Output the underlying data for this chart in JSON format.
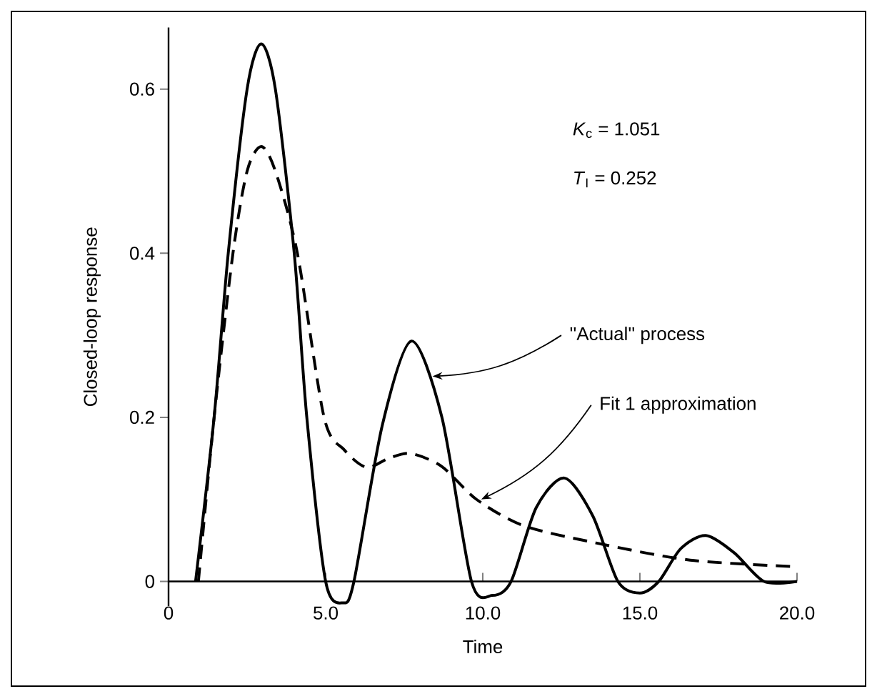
{
  "chart_data": {
    "type": "line",
    "xlabel": "Time",
    "ylabel": "Closed-loop response",
    "xlim": [
      0,
      20
    ],
    "ylim": [
      -0.03,
      0.675
    ],
    "xticks": [
      0,
      {
        "value": 5,
        "label": "5.0"
      },
      {
        "value": 10,
        "label": "10.0"
      },
      {
        "value": 15,
        "label": "15.0"
      },
      {
        "value": 20,
        "label": "20.0"
      }
    ],
    "yticks": [
      0,
      0.2,
      0.4,
      0.6
    ],
    "grid": false,
    "marker": "none",
    "series": [
      {
        "color": "#000000",
        "line_style": "solid",
        "x": [
          0.86,
          1.45,
          1.9,
          2.5,
          2.95,
          3.4,
          4.0,
          4.4,
          5.0,
          5.55,
          5.9,
          6.8,
          7.73,
          8.7,
          9.64,
          10.3,
          10.9,
          11.7,
          12.6,
          13.5,
          14.3,
          15.0,
          15.6,
          16.3,
          17.1,
          18.0,
          18.95,
          20.0
        ],
        "values": [
          0,
          0.2,
          0.4,
          0.6,
          0.655,
          0.6,
          0.4,
          0.2,
          0,
          -0.026,
          0,
          0.19,
          0.293,
          0.2,
          0,
          -0.017,
          0,
          0.09,
          0.126,
          0.08,
          0,
          -0.014,
          0,
          0.04,
          0.056,
          0.035,
          0,
          0
        ]
      },
      {
        "color": "#000000",
        "line_style": "dashed",
        "x": [
          0.95,
          1.45,
          2.05,
          2.5,
          2.95,
          3.4,
          4.1,
          4.95,
          5.6,
          6.3,
          7.0,
          7.7,
          8.7,
          9.8,
          11.3,
          13.6,
          16.6,
          20.0
        ],
        "values": [
          0,
          0.2,
          0.4,
          0.5,
          0.53,
          0.5,
          0.4,
          0.2,
          0.16,
          0.139,
          0.15,
          0.156,
          0.14,
          0.1,
          0.068,
          0.047,
          0.026,
          0.018
        ]
      }
    ],
    "annotations": [
      {
        "text": "*K*$_{c}$ = 1.051"
      },
      {
        "text": "*T*$_{I}$ = 0.252"
      },
      {
        "text": "''Actual'' process",
        "x": 8.4,
        "y": 0.25
      },
      {
        "text": "Fit 1 approximation",
        "x": 9.95,
        "y": 0.1
      }
    ]
  }
}
